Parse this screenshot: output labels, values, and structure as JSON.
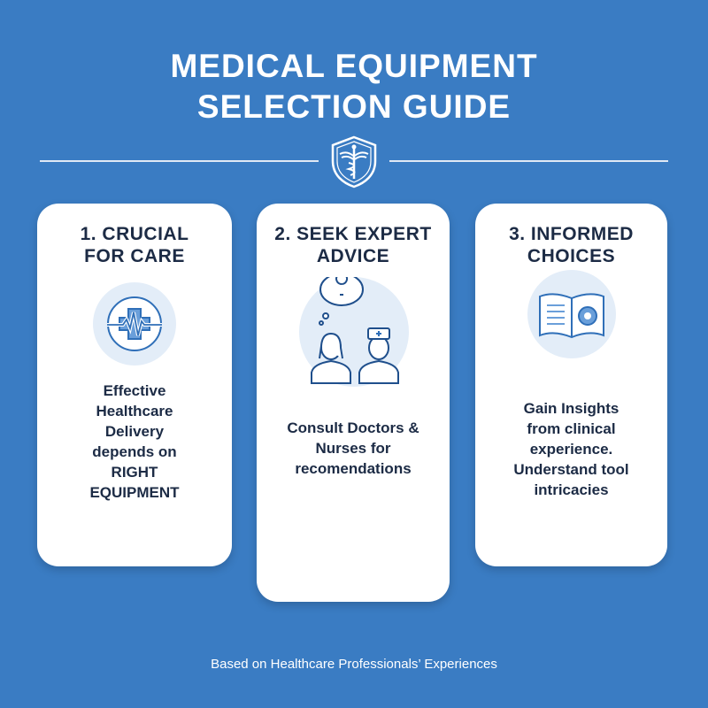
{
  "header": {
    "title_line1": "MEDICAL EQUIPMENT",
    "title_line2": "SELECTION GUIDE",
    "emblem_icon": "caduceus-shield-icon"
  },
  "cards": [
    {
      "title_line1": "1. CRUCIAL",
      "title_line2": "FOR CARE",
      "icon": "medical-cross-heartbeat-icon",
      "text_lines": [
        "Effective",
        "Healthcare",
        "Delivery",
        "depends on",
        "RIGHT",
        "EQUIPMENT"
      ]
    },
    {
      "title_line1": "2. SEEK EXPERT",
      "title_line2": "ADVICE",
      "icon": "doctor-nurse-lightbulb-icon",
      "text_lines": [
        "Consult Doctors &",
        "Nurses for",
        "recomendations"
      ]
    },
    {
      "title_line1": "3. INFORMED",
      "title_line2": "CHOICES",
      "icon": "book-gear-icon",
      "text_lines": [
        "Gain Insights",
        "from clinical",
        "experience.",
        "Understand tool",
        "intricacies"
      ]
    }
  ],
  "footer": {
    "text": "Based on Healthcare Professionals’ Experiences"
  },
  "colors": {
    "background": "#3a7cc3",
    "card": "#ffffff",
    "text": "#1c2b45",
    "icon_stroke": "#2f6fb8",
    "icon_bg": "#e3edf8"
  }
}
